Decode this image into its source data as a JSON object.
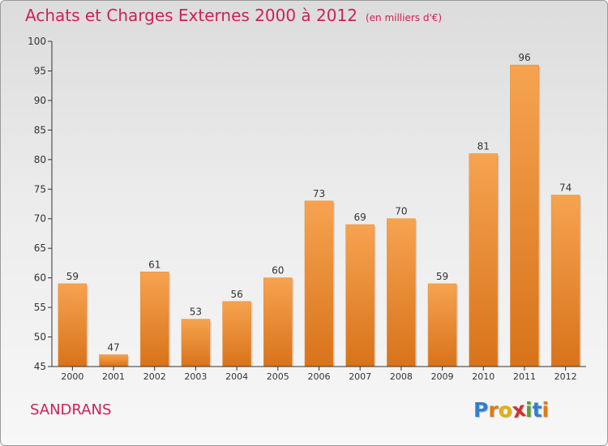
{
  "header": {
    "title": "Achats et Charges Externes 2000 à 2012",
    "subtitle": "(en milliers d'€)"
  },
  "footer": {
    "commune": "SANDRANS",
    "logo_letters": [
      {
        "char": "P",
        "color": "#2f7fd0"
      },
      {
        "char": "r",
        "color": "#e07a10"
      },
      {
        "char": "o",
        "color": "#e0b010"
      },
      {
        "char": "x",
        "color": "#d03030"
      },
      {
        "char": "i",
        "color": "#5aa030"
      },
      {
        "char": "t",
        "color": "#2f7fd0"
      },
      {
        "char": "i",
        "color": "#e07a10"
      }
    ]
  },
  "colors": {
    "title": "#cc2255",
    "bar_top": "#f6a350",
    "bar_bottom": "#d8731a",
    "axis": "#333333"
  },
  "chart_data": {
    "type": "bar",
    "categories": [
      "2000",
      "2001",
      "2002",
      "2003",
      "2004",
      "2005",
      "2006",
      "2007",
      "2008",
      "2009",
      "2010",
      "2011",
      "2012"
    ],
    "values": [
      59,
      47,
      61,
      53,
      56,
      60,
      73,
      69,
      70,
      59,
      81,
      96,
      74
    ],
    "ylim": [
      45,
      100
    ],
    "yticks": [
      45,
      50,
      55,
      60,
      65,
      70,
      75,
      80,
      85,
      90,
      95,
      100
    ],
    "grid": false,
    "data_labels": true
  }
}
